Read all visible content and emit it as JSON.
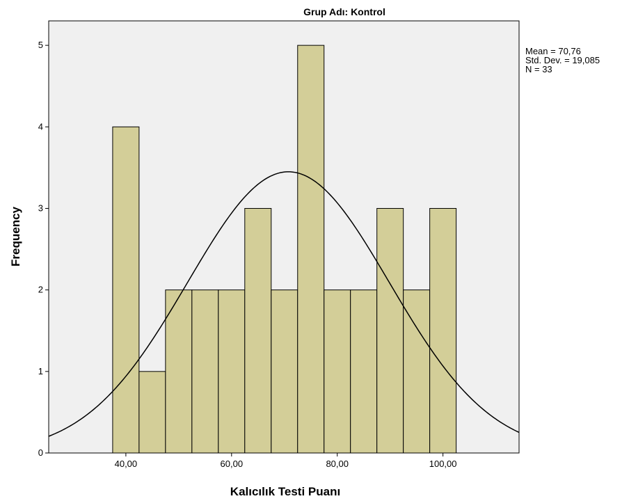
{
  "chart_data": {
    "type": "histogram",
    "title": "Grup Adı: Kontrol",
    "x_label": "Kalıcılık Testi Puanı",
    "y_label": "Frequency",
    "bins": [
      37.5,
      42.5,
      47.5,
      52.5,
      57.5,
      62.5,
      67.5,
      72.5,
      77.5,
      82.5,
      87.5,
      92.5,
      97.5,
      102.5
    ],
    "values": [
      4,
      1,
      2,
      2,
      2,
      3,
      2,
      5,
      2,
      2,
      3,
      2,
      3
    ],
    "color": "#d3ce98",
    "xlim": [
      25.4,
      114.4
    ],
    "ylim": [
      0,
      5.3
    ],
    "xticks": [
      {
        "value": 40,
        "label": "40,00"
      },
      {
        "value": 60,
        "label": "60,00"
      },
      {
        "value": 80,
        "label": "80,00"
      },
      {
        "value": 100,
        "label": "100,00"
      }
    ],
    "yticks": [
      0,
      1,
      2,
      3,
      4,
      5
    ],
    "normal_curve": true,
    "stats": [
      {
        "value": 70.76,
        "label": "Mean = 70,76"
      },
      {
        "value": 19.085,
        "label": "Std. Dev. = 19,085"
      },
      {
        "value": 33,
        "label": "N = 33"
      }
    ]
  }
}
